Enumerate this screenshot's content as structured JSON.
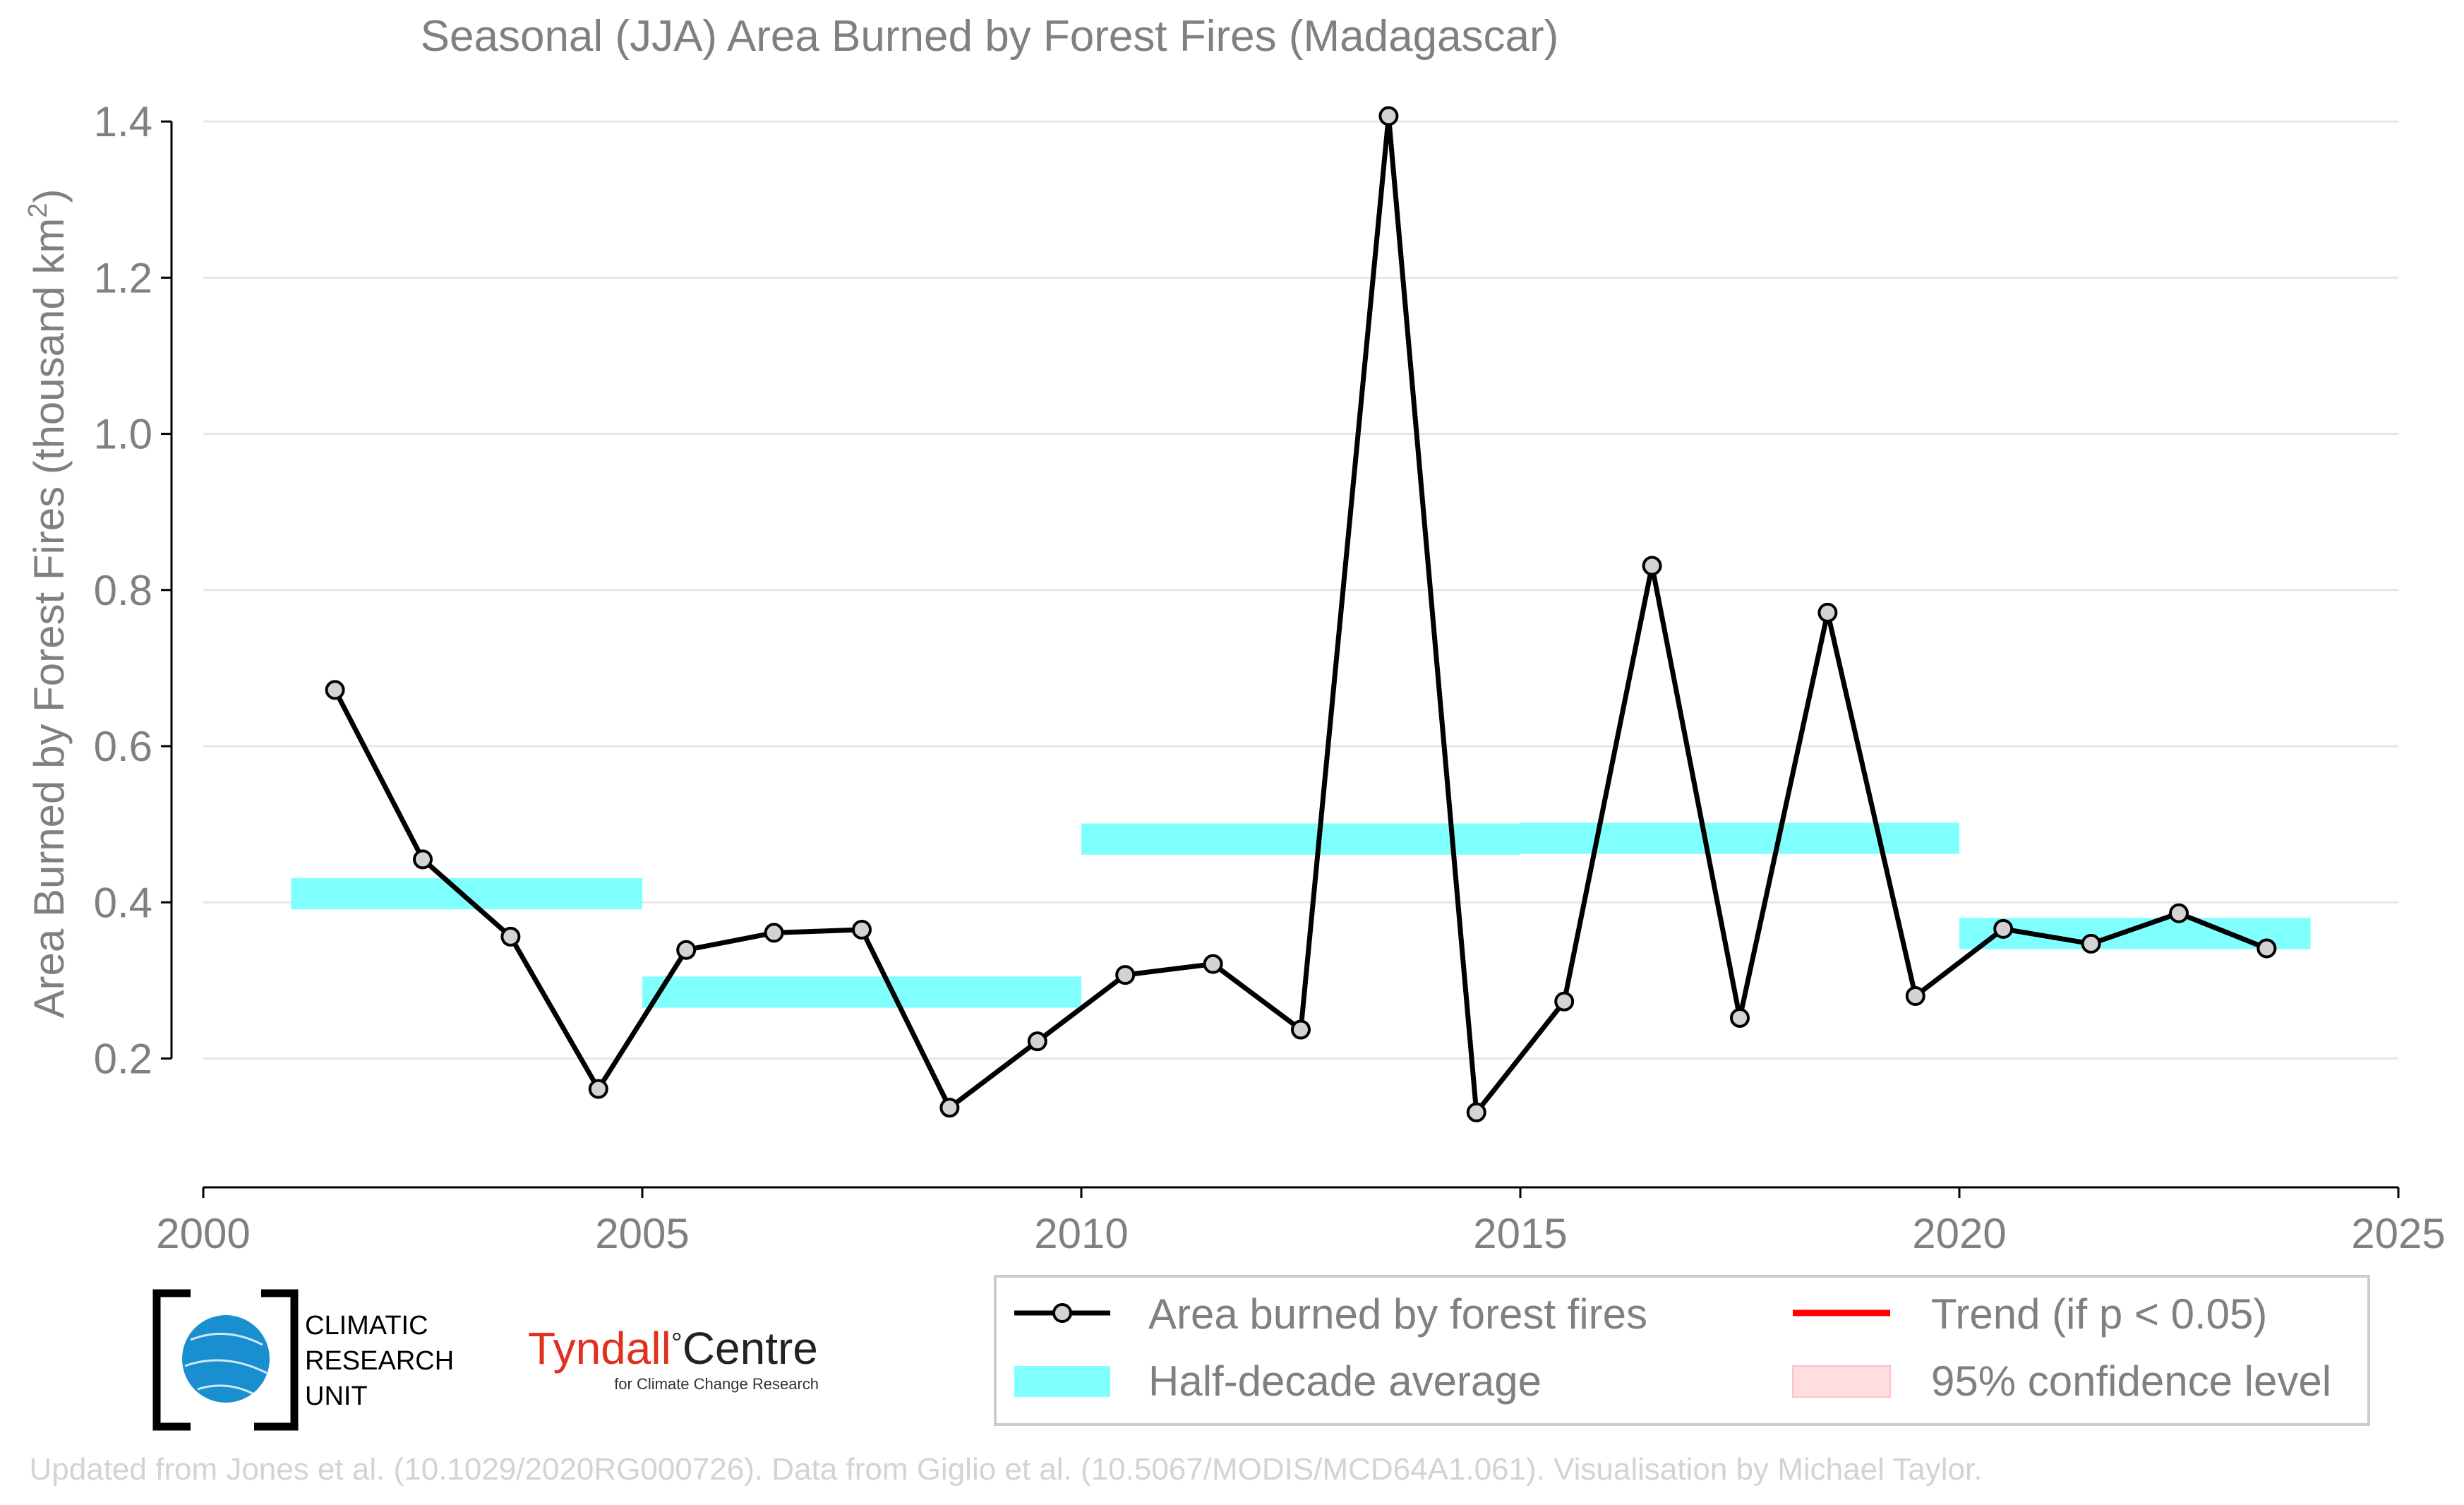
{
  "chart_data": {
    "type": "line",
    "title": "Seasonal (JJA) Area Burned by Forest Fires (Madagascar)",
    "xlabel": "",
    "ylabel_main": "Area Burned by Forest Fires (thousand km",
    "ylabel_sup": "2",
    "ylabel_close": ")",
    "xlim": [
      2000,
      2025
    ],
    "ylim": [
      0.035,
      1.42
    ],
    "x_ticks": [
      2000,
      2005,
      2010,
      2015,
      2020,
      2025
    ],
    "x_tick_labels": [
      "2000",
      "2005",
      "2010",
      "2015",
      "2020",
      "2025"
    ],
    "y_ticks": [
      0.2,
      0.4,
      0.6,
      0.8,
      1.0,
      1.2,
      1.4
    ],
    "y_tick_labels": [
      "0.2",
      "0.4",
      "0.6",
      "0.8",
      "1.0",
      "1.2",
      "1.4"
    ],
    "grid": "horizontal",
    "legend_position": "bottom-right",
    "series": [
      {
        "name": "Area burned by forest fires",
        "color": "#000000",
        "marker_fill": "#d3d3d3",
        "x": [
          2001.5,
          2002.5,
          2003.5,
          2004.5,
          2005.5,
          2006.5,
          2007.5,
          2008.5,
          2009.5,
          2010.5,
          2011.5,
          2012.5,
          2013.5,
          2014.5,
          2015.5,
          2016.5,
          2017.5,
          2018.5,
          2019.5,
          2020.5,
          2021.5,
          2022.5,
          2023.5
        ],
        "values": [
          0.672,
          0.455,
          0.356,
          0.161,
          0.339,
          0.361,
          0.365,
          0.137,
          0.222,
          0.307,
          0.321,
          0.237,
          1.407,
          0.131,
          0.273,
          0.831,
          0.252,
          0.771,
          0.28,
          0.366,
          0.347,
          0.386,
          0.341
        ]
      }
    ],
    "half_decade_averages": {
      "name": "Half-decade average",
      "color": "#80ffff",
      "segments": [
        {
          "x0": 2001,
          "x1": 2005,
          "value": 0.411
        },
        {
          "x0": 2005,
          "x1": 2010,
          "value": 0.285
        },
        {
          "x0": 2010,
          "x1": 2015,
          "value": 0.481
        },
        {
          "x0": 2015,
          "x1": 2020,
          "value": 0.482
        },
        {
          "x0": 2020,
          "x1": 2024,
          "value": 0.36
        }
      ]
    },
    "legend": [
      {
        "label": "Area burned by forest fires",
        "kind": "line-marker",
        "color": "#000000"
      },
      {
        "label": "Trend (if p < 0.05)",
        "kind": "line",
        "color": "#ff0000"
      },
      {
        "label": "Half-decade average",
        "kind": "band",
        "color": "#80ffff"
      },
      {
        "label": "95% confidence level",
        "kind": "band",
        "color": "#ffdde0"
      }
    ]
  },
  "logos": {
    "cru_line1": "CLIMATIC",
    "cru_line2": "RESEARCH",
    "cru_line3": "UNIT",
    "tyndall_part1": "Tyndall",
    "tyndall_degree": "°",
    "tyndall_part2": "Centre",
    "tyndall_sub": "for Climate Change Research",
    "tyndall_red": "#e0301e"
  },
  "credit": "Updated from Jones et al. (10.1029/2020RG000726). Data from Giglio et al. (10.5067/MODIS/MCD64A1.061). Visualisation by Michael Taylor."
}
